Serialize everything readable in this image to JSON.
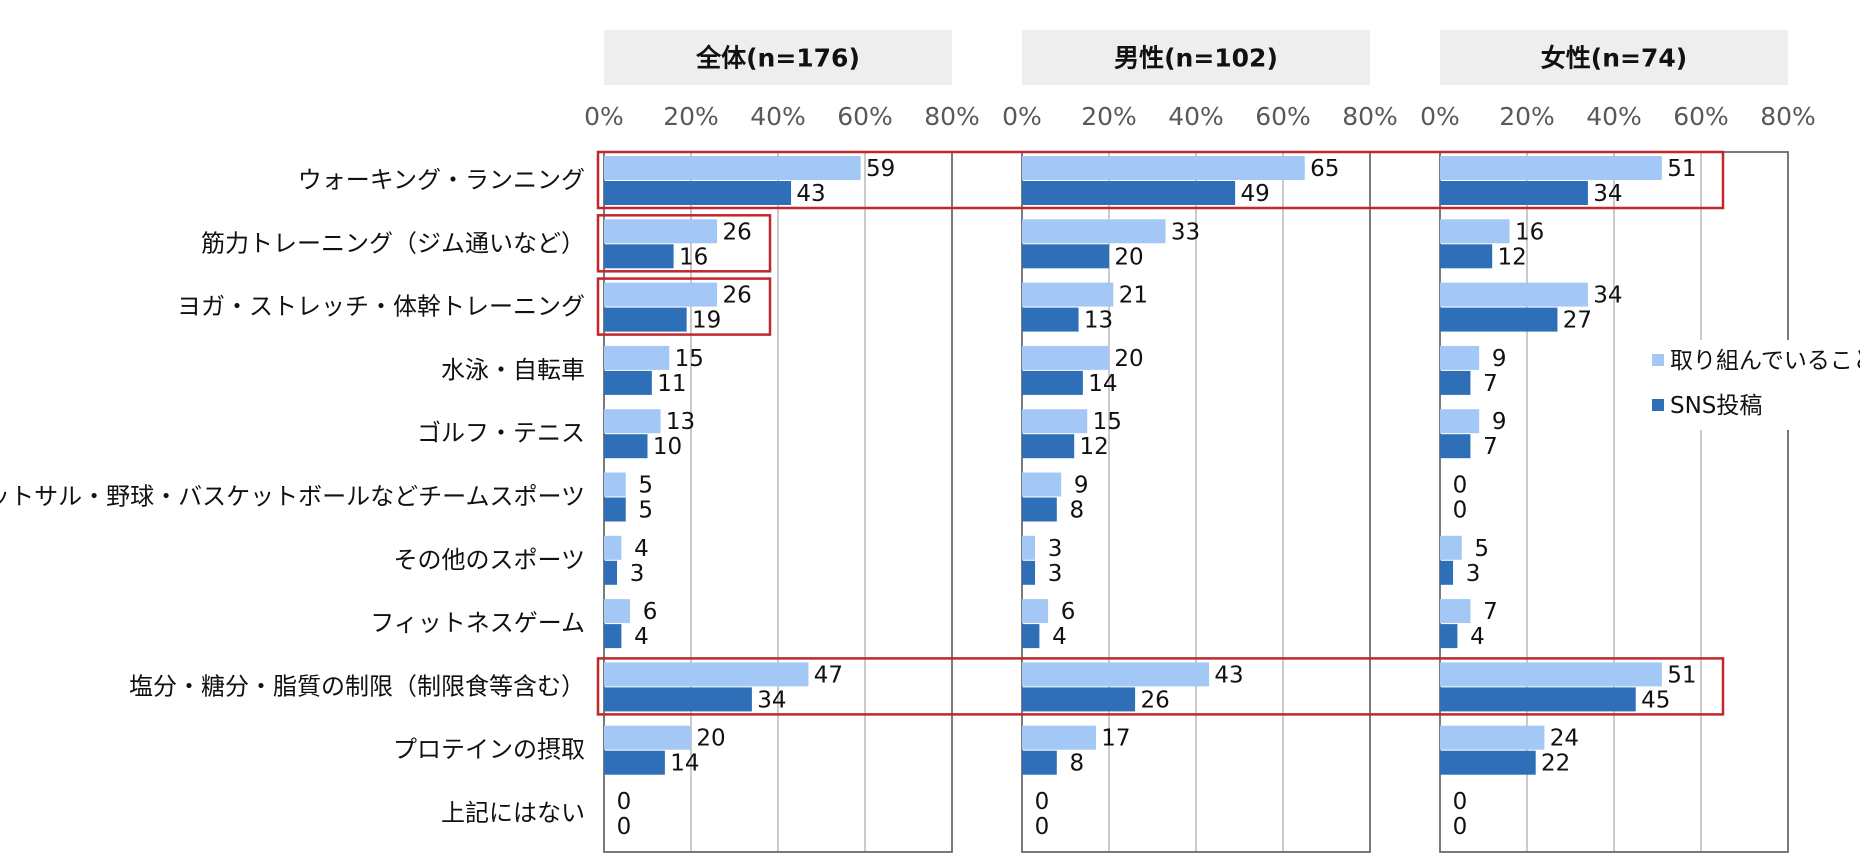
{
  "chart_data": {
    "type": "bar",
    "orientation": "horizontal",
    "xlim": [
      0,
      80
    ],
    "x_ticks": [
      "0%",
      "20%",
      "40%",
      "60%",
      "80%"
    ],
    "grid": true,
    "legend_position": "right",
    "categories": [
      "ウォーキング・ランニング",
      "筋力トレーニング（ジム通いなど）",
      "ヨガ・ストレッチ・体幹トレーニング",
      "水泳・自転車",
      "ゴルフ・テニス",
      "フットサル・野球・バスケットボールなどチームスポーツ",
      "その他のスポーツ",
      "フィットネスゲーム",
      "塩分・糖分・脂質の制限（制限食等含む）",
      "プロテインの摂取",
      "上記にはない"
    ],
    "series_meta": [
      {
        "name": "取り組んでいること",
        "color": "#a3c8f5"
      },
      {
        "name": "SNS投稿",
        "color": "#2e6fb7"
      }
    ],
    "panels": [
      {
        "title": "全体(n=176)",
        "series": [
          {
            "name": "取り組んでいること",
            "values": [
              59,
              26,
              26,
              15,
              13,
              5,
              4,
              6,
              47,
              20,
              0
            ]
          },
          {
            "name": "SNS投稿",
            "values": [
              43,
              16,
              19,
              11,
              10,
              5,
              3,
              4,
              34,
              14,
              0
            ]
          }
        ]
      },
      {
        "title": "男性(n=102)",
        "series": [
          {
            "name": "取り組んでいること",
            "values": [
              65,
              33,
              21,
              20,
              15,
              9,
              3,
              6,
              43,
              17,
              0
            ]
          },
          {
            "name": "SNS投稿",
            "values": [
              49,
              20,
              13,
              14,
              12,
              8,
              3,
              4,
              26,
              8,
              0
            ]
          }
        ]
      },
      {
        "title": "女性(n=74)",
        "series": [
          {
            "name": "取り組んでいること",
            "values": [
              51,
              16,
              34,
              9,
              9,
              0,
              5,
              7,
              51,
              24,
              0
            ]
          },
          {
            "name": "SNS投稿",
            "values": [
              34,
              12,
              27,
              7,
              7,
              0,
              3,
              4,
              45,
              22,
              0
            ]
          }
        ]
      }
    ],
    "highlight_color": "#c0282d"
  }
}
